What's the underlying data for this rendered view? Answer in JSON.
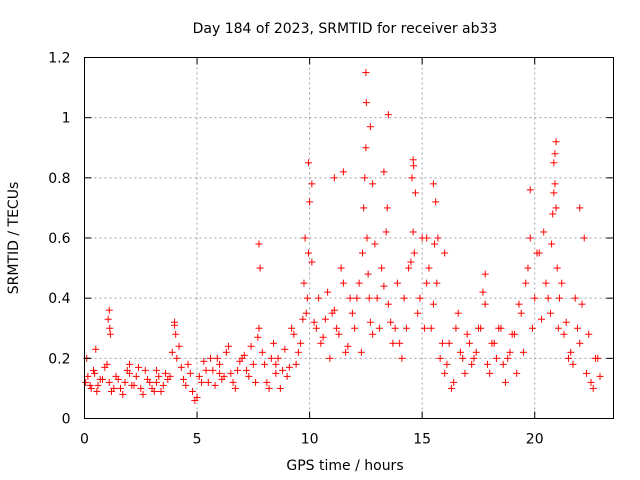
{
  "chart_data": {
    "type": "scatter",
    "title": "Day 184 of 2023, SRMTID for receiver ab33",
    "xlabel": "GPS time / hours",
    "ylabel": "SRMTID / TECUs",
    "xlim": [
      0,
      23.5
    ],
    "ylim": [
      0,
      1.2
    ],
    "xticks": [
      0,
      5,
      10,
      15,
      20
    ],
    "xtick_labels": [
      "0",
      "5",
      "10",
      "15",
      "20"
    ],
    "yticks": [
      0,
      0.2,
      0.4,
      0.6,
      0.8,
      1.0,
      1.2
    ],
    "ytick_labels": [
      "0",
      "0.2",
      "0.4",
      "0.6",
      "0.8",
      "1",
      "1.2"
    ],
    "grid": true,
    "marker": "+",
    "color": "#ff0000",
    "series": [
      {
        "name": "SRMTID",
        "x": [
          0.05,
          0.15,
          0.3,
          0.45,
          0.6,
          0.8,
          1.0,
          1.05,
          1.1,
          1.2,
          1.4,
          1.6,
          1.8,
          2.0,
          2.2,
          2.4,
          2.6,
          2.8,
          3.0,
          3.2,
          3.4,
          3.6,
          3.8,
          3.9,
          4.0,
          4.1,
          4.3,
          4.5,
          4.7,
          4.9,
          5.1,
          5.3,
          5.5,
          5.7,
          5.9,
          6.1,
          6.3,
          6.5,
          6.7,
          6.9,
          7.1,
          7.3,
          7.5,
          7.7,
          7.8,
          7.9,
          8.1,
          8.3,
          8.5,
          8.7,
          8.9,
          9.1,
          9.3,
          9.5,
          9.7,
          9.8,
          9.9,
          10.0,
          10.1,
          10.3,
          10.5,
          10.7,
          10.9,
          11.1,
          11.3,
          11.5,
          11.7,
          11.9,
          12.1,
          12.3,
          12.4,
          12.5,
          12.6,
          12.7,
          12.9,
          13.1,
          13.3,
          13.4,
          13.5,
          13.7,
          13.9,
          14.1,
          14.3,
          14.5,
          14.6,
          14.7,
          14.9,
          15.1,
          15.3,
          15.5,
          15.6,
          15.7,
          15.9,
          16.1,
          16.3,
          16.5,
          16.7,
          16.9,
          17.1,
          17.3,
          17.5,
          17.7,
          17.9,
          18.1,
          18.3,
          18.5,
          18.7,
          18.9,
          19.1,
          19.3,
          19.5,
          19.7,
          19.9,
          20.1,
          20.3,
          20.5,
          20.7,
          20.8,
          20.9,
          21.0,
          21.1,
          21.3,
          21.5,
          21.7,
          21.9,
          22.1,
          22.3,
          22.5,
          22.7,
          22.9,
          0.1,
          0.25,
          0.4,
          0.55,
          0.7,
          0.9,
          1.15,
          1.3,
          1.5,
          1.7,
          1.9,
          2.1,
          2.3,
          2.5,
          2.7,
          2.9,
          3.1,
          3.3,
          3.5,
          3.7,
          4.05,
          4.2,
          4.4,
          4.6,
          4.8,
          5.0,
          5.2,
          5.4,
          5.6,
          5.8,
          6.0,
          6.2,
          6.4,
          6.6,
          6.8,
          7.0,
          7.2,
          7.4,
          7.6,
          7.75,
          8.0,
          8.2,
          8.4,
          8.6,
          8.8,
          9.0,
          9.2,
          9.4,
          9.6,
          9.75,
          9.85,
          9.95,
          10.2,
          10.4,
          10.6,
          10.8,
          11.0,
          11.2,
          11.4,
          11.6,
          11.8,
          12.0,
          12.2,
          12.35,
          12.45,
          12.55,
          12.65,
          12.8,
          13.0,
          13.2,
          13.45,
          13.6,
          13.8,
          14.0,
          14.2,
          14.4,
          14.55,
          14.65,
          14.8,
          15.0,
          15.2,
          15.4,
          15.55,
          15.65,
          15.8,
          16.0,
          16.2,
          16.4,
          16.6,
          16.8,
          17.0,
          17.2,
          17.4,
          17.6,
          17.8,
          18.0,
          18.2,
          18.4,
          18.6,
          18.8,
          19.0,
          19.2,
          19.4,
          19.6,
          19.8,
          20.0,
          20.2,
          20.4,
          20.6,
          20.75,
          20.85,
          20.95,
          21.05,
          21.2,
          21.4,
          21.6,
          21.8,
          22.0,
          22.2,
          22.4,
          22.6,
          22.8,
          1.1,
          1.12,
          12.5,
          12.52,
          13.5,
          14.6,
          14.62,
          15.5,
          9.95,
          12.7,
          13.3,
          20.95,
          20.9,
          20.85,
          22.0,
          19.8,
          11.1,
          11.5,
          12.8,
          15.2,
          10.1,
          16.0,
          17.8,
          7.75,
          4.0,
          3.2,
          2.0,
          0.5,
          6.0,
          8.5
        ],
        "y": [
          0.12,
          0.14,
          0.1,
          0.15,
          0.11,
          0.13,
          0.18,
          0.33,
          0.12,
          0.09,
          0.14,
          0.1,
          0.12,
          0.15,
          0.11,
          0.17,
          0.08,
          0.13,
          0.1,
          0.12,
          0.09,
          0.15,
          0.14,
          0.22,
          0.31,
          0.2,
          0.17,
          0.11,
          0.15,
          0.06,
          0.14,
          0.19,
          0.12,
          0.16,
          0.2,
          0.13,
          0.22,
          0.15,
          0.1,
          0.19,
          0.21,
          0.14,
          0.18,
          0.27,
          0.5,
          0.22,
          0.12,
          0.2,
          0.15,
          0.1,
          0.23,
          0.17,
          0.28,
          0.22,
          0.33,
          0.6,
          0.4,
          0.72,
          0.52,
          0.3,
          0.25,
          0.33,
          0.2,
          0.36,
          0.28,
          0.45,
          0.24,
          0.35,
          0.4,
          0.22,
          0.7,
          0.9,
          0.48,
          0.32,
          0.58,
          0.3,
          0.44,
          0.62,
          0.38,
          0.25,
          0.45,
          0.2,
          0.3,
          0.52,
          0.62,
          0.75,
          0.4,
          0.3,
          0.5,
          0.38,
          0.72,
          0.6,
          0.25,
          0.18,
          0.1,
          0.3,
          0.22,
          0.15,
          0.25,
          0.2,
          0.3,
          0.42,
          0.18,
          0.25,
          0.2,
          0.3,
          0.12,
          0.22,
          0.28,
          0.38,
          0.22,
          0.5,
          0.3,
          0.55,
          0.33,
          0.45,
          0.35,
          0.68,
          0.78,
          0.5,
          0.4,
          0.28,
          0.2,
          0.18,
          0.3,
          0.38,
          0.15,
          0.12,
          0.2,
          0.14,
          0.2,
          0.11,
          0.16,
          0.09,
          0.13,
          0.17,
          0.28,
          0.1,
          0.13,
          0.08,
          0.16,
          0.11,
          0.14,
          0.1,
          0.16,
          0.12,
          0.09,
          0.14,
          0.11,
          0.13,
          0.28,
          0.24,
          0.13,
          0.18,
          0.09,
          0.07,
          0.12,
          0.16,
          0.2,
          0.11,
          0.18,
          0.14,
          0.24,
          0.12,
          0.16,
          0.2,
          0.16,
          0.24,
          0.12,
          0.3,
          0.18,
          0.1,
          0.25,
          0.2,
          0.16,
          0.14,
          0.3,
          0.18,
          0.25,
          0.45,
          0.35,
          0.55,
          0.32,
          0.4,
          0.27,
          0.42,
          0.35,
          0.3,
          0.5,
          0.22,
          0.4,
          0.3,
          0.45,
          0.55,
          0.8,
          0.6,
          0.4,
          0.28,
          0.4,
          0.5,
          0.7,
          0.32,
          0.3,
          0.25,
          0.4,
          0.5,
          0.8,
          0.55,
          0.35,
          0.6,
          0.45,
          0.3,
          0.58,
          0.45,
          0.2,
          0.15,
          0.25,
          0.12,
          0.35,
          0.2,
          0.28,
          0.18,
          0.22,
          0.3,
          0.38,
          0.15,
          0.25,
          0.3,
          0.18,
          0.2,
          0.28,
          0.15,
          0.35,
          0.45,
          0.6,
          0.4,
          0.55,
          0.62,
          0.4,
          0.58,
          0.85,
          0.7,
          0.3,
          0.45,
          0.32,
          0.22,
          0.4,
          0.25,
          0.6,
          0.28,
          0.1,
          0.2,
          0.36,
          0.3,
          1.15,
          1.05,
          1.01,
          0.86,
          0.84,
          0.78,
          0.85,
          0.97,
          0.82,
          0.92,
          0.88,
          0.75,
          0.7,
          0.76,
          0.8,
          0.82,
          0.78,
          0.6,
          0.78,
          0.55,
          0.48,
          0.58,
          0.32,
          0.16,
          0.18,
          0.23,
          0.15,
          0.18
        ]
      }
    ]
  }
}
